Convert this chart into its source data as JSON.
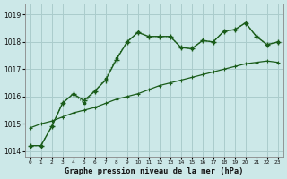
{
  "xlabel": "Graphe pression niveau de la mer (hPa)",
  "bg_color": "#cce8e8",
  "grid_color": "#aacccc",
  "line_color_main": "#1a5c1a",
  "x_values": [
    0,
    1,
    2,
    3,
    4,
    5,
    6,
    7,
    8,
    9,
    10,
    11,
    12,
    13,
    14,
    15,
    16,
    17,
    18,
    19,
    20,
    21,
    22,
    23
  ],
  "y_dotted": [
    1014.2,
    1014.2,
    1014.9,
    1015.75,
    1016.1,
    1015.75,
    1016.2,
    1016.65,
    1017.4,
    1018.0,
    1018.35,
    1018.2,
    1018.2,
    1018.2,
    1017.8,
    1017.75,
    1018.05,
    1018.0,
    1018.4,
    1018.45,
    1018.7,
    1018.2,
    1017.9,
    1018.0
  ],
  "y_cross": [
    1014.2,
    1014.2,
    1014.9,
    1015.75,
    1016.1,
    1015.85,
    1016.2,
    1016.6,
    1017.35,
    1018.0,
    1018.35,
    1018.2,
    1018.2,
    1018.2,
    1017.8,
    1017.75,
    1018.05,
    1018.0,
    1018.4,
    1018.45,
    1018.7,
    1018.2,
    1017.9,
    1018.0
  ],
  "y_straight": [
    1014.85,
    1015.0,
    1015.1,
    1015.25,
    1015.4,
    1015.5,
    1015.6,
    1015.75,
    1015.9,
    1016.0,
    1016.1,
    1016.25,
    1016.4,
    1016.5,
    1016.6,
    1016.7,
    1016.8,
    1016.9,
    1017.0,
    1017.1,
    1017.2,
    1017.25,
    1017.3,
    1017.25
  ],
  "ylim_min": 1013.8,
  "ylim_max": 1019.4,
  "yticks": [
    1014,
    1015,
    1016,
    1017,
    1018,
    1019
  ],
  "xtick_labels": [
    "0",
    "1",
    "2",
    "3",
    "4",
    "5",
    "6",
    "7",
    "8",
    "9",
    "10",
    "11",
    "12",
    "13",
    "14",
    "15",
    "16",
    "17",
    "18",
    "19",
    "20",
    "21",
    "22",
    "23"
  ]
}
